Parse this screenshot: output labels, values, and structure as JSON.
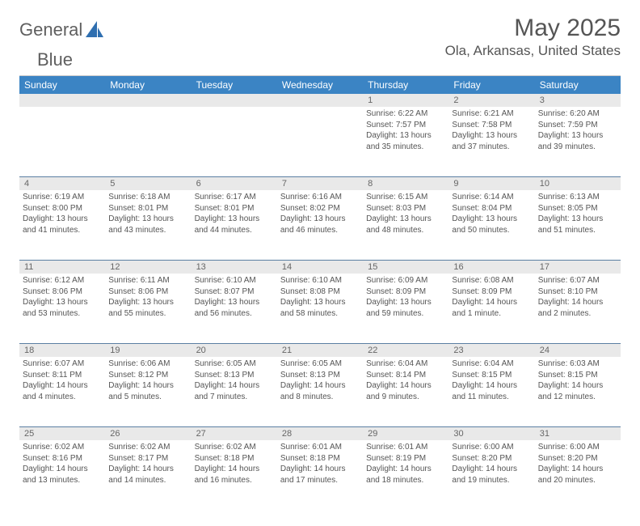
{
  "logo": {
    "text1": "General",
    "text2": "Blue"
  },
  "title": "May 2025",
  "location": "Ola, Arkansas, United States",
  "accent_color": "#3b84c4",
  "band_color": "#e9e9e9",
  "text_color": "#555555",
  "day_names": [
    "Sunday",
    "Monday",
    "Tuesday",
    "Wednesday",
    "Thursday",
    "Friday",
    "Saturday"
  ],
  "weeks": [
    {
      "nums": [
        "",
        "",
        "",
        "",
        "1",
        "2",
        "3"
      ],
      "cells": [
        {},
        {},
        {},
        {},
        {
          "sunrise": "Sunrise: 6:22 AM",
          "sunset": "Sunset: 7:57 PM",
          "day1": "Daylight: 13 hours",
          "day2": "and 35 minutes."
        },
        {
          "sunrise": "Sunrise: 6:21 AM",
          "sunset": "Sunset: 7:58 PM",
          "day1": "Daylight: 13 hours",
          "day2": "and 37 minutes."
        },
        {
          "sunrise": "Sunrise: 6:20 AM",
          "sunset": "Sunset: 7:59 PM",
          "day1": "Daylight: 13 hours",
          "day2": "and 39 minutes."
        }
      ]
    },
    {
      "nums": [
        "4",
        "5",
        "6",
        "7",
        "8",
        "9",
        "10"
      ],
      "cells": [
        {
          "sunrise": "Sunrise: 6:19 AM",
          "sunset": "Sunset: 8:00 PM",
          "day1": "Daylight: 13 hours",
          "day2": "and 41 minutes."
        },
        {
          "sunrise": "Sunrise: 6:18 AM",
          "sunset": "Sunset: 8:01 PM",
          "day1": "Daylight: 13 hours",
          "day2": "and 43 minutes."
        },
        {
          "sunrise": "Sunrise: 6:17 AM",
          "sunset": "Sunset: 8:01 PM",
          "day1": "Daylight: 13 hours",
          "day2": "and 44 minutes."
        },
        {
          "sunrise": "Sunrise: 6:16 AM",
          "sunset": "Sunset: 8:02 PM",
          "day1": "Daylight: 13 hours",
          "day2": "and 46 minutes."
        },
        {
          "sunrise": "Sunrise: 6:15 AM",
          "sunset": "Sunset: 8:03 PM",
          "day1": "Daylight: 13 hours",
          "day2": "and 48 minutes."
        },
        {
          "sunrise": "Sunrise: 6:14 AM",
          "sunset": "Sunset: 8:04 PM",
          "day1": "Daylight: 13 hours",
          "day2": "and 50 minutes."
        },
        {
          "sunrise": "Sunrise: 6:13 AM",
          "sunset": "Sunset: 8:05 PM",
          "day1": "Daylight: 13 hours",
          "day2": "and 51 minutes."
        }
      ]
    },
    {
      "nums": [
        "11",
        "12",
        "13",
        "14",
        "15",
        "16",
        "17"
      ],
      "cells": [
        {
          "sunrise": "Sunrise: 6:12 AM",
          "sunset": "Sunset: 8:06 PM",
          "day1": "Daylight: 13 hours",
          "day2": "and 53 minutes."
        },
        {
          "sunrise": "Sunrise: 6:11 AM",
          "sunset": "Sunset: 8:06 PM",
          "day1": "Daylight: 13 hours",
          "day2": "and 55 minutes."
        },
        {
          "sunrise": "Sunrise: 6:10 AM",
          "sunset": "Sunset: 8:07 PM",
          "day1": "Daylight: 13 hours",
          "day2": "and 56 minutes."
        },
        {
          "sunrise": "Sunrise: 6:10 AM",
          "sunset": "Sunset: 8:08 PM",
          "day1": "Daylight: 13 hours",
          "day2": "and 58 minutes."
        },
        {
          "sunrise": "Sunrise: 6:09 AM",
          "sunset": "Sunset: 8:09 PM",
          "day1": "Daylight: 13 hours",
          "day2": "and 59 minutes."
        },
        {
          "sunrise": "Sunrise: 6:08 AM",
          "sunset": "Sunset: 8:09 PM",
          "day1": "Daylight: 14 hours",
          "day2": "and 1 minute."
        },
        {
          "sunrise": "Sunrise: 6:07 AM",
          "sunset": "Sunset: 8:10 PM",
          "day1": "Daylight: 14 hours",
          "day2": "and 2 minutes."
        }
      ]
    },
    {
      "nums": [
        "18",
        "19",
        "20",
        "21",
        "22",
        "23",
        "24"
      ],
      "cells": [
        {
          "sunrise": "Sunrise: 6:07 AM",
          "sunset": "Sunset: 8:11 PM",
          "day1": "Daylight: 14 hours",
          "day2": "and 4 minutes."
        },
        {
          "sunrise": "Sunrise: 6:06 AM",
          "sunset": "Sunset: 8:12 PM",
          "day1": "Daylight: 14 hours",
          "day2": "and 5 minutes."
        },
        {
          "sunrise": "Sunrise: 6:05 AM",
          "sunset": "Sunset: 8:13 PM",
          "day1": "Daylight: 14 hours",
          "day2": "and 7 minutes."
        },
        {
          "sunrise": "Sunrise: 6:05 AM",
          "sunset": "Sunset: 8:13 PM",
          "day1": "Daylight: 14 hours",
          "day2": "and 8 minutes."
        },
        {
          "sunrise": "Sunrise: 6:04 AM",
          "sunset": "Sunset: 8:14 PM",
          "day1": "Daylight: 14 hours",
          "day2": "and 9 minutes."
        },
        {
          "sunrise": "Sunrise: 6:04 AM",
          "sunset": "Sunset: 8:15 PM",
          "day1": "Daylight: 14 hours",
          "day2": "and 11 minutes."
        },
        {
          "sunrise": "Sunrise: 6:03 AM",
          "sunset": "Sunset: 8:15 PM",
          "day1": "Daylight: 14 hours",
          "day2": "and 12 minutes."
        }
      ]
    },
    {
      "nums": [
        "25",
        "26",
        "27",
        "28",
        "29",
        "30",
        "31"
      ],
      "cells": [
        {
          "sunrise": "Sunrise: 6:02 AM",
          "sunset": "Sunset: 8:16 PM",
          "day1": "Daylight: 14 hours",
          "day2": "and 13 minutes."
        },
        {
          "sunrise": "Sunrise: 6:02 AM",
          "sunset": "Sunset: 8:17 PM",
          "day1": "Daylight: 14 hours",
          "day2": "and 14 minutes."
        },
        {
          "sunrise": "Sunrise: 6:02 AM",
          "sunset": "Sunset: 8:18 PM",
          "day1": "Daylight: 14 hours",
          "day2": "and 16 minutes."
        },
        {
          "sunrise": "Sunrise: 6:01 AM",
          "sunset": "Sunset: 8:18 PM",
          "day1": "Daylight: 14 hours",
          "day2": "and 17 minutes."
        },
        {
          "sunrise": "Sunrise: 6:01 AM",
          "sunset": "Sunset: 8:19 PM",
          "day1": "Daylight: 14 hours",
          "day2": "and 18 minutes."
        },
        {
          "sunrise": "Sunrise: 6:00 AM",
          "sunset": "Sunset: 8:20 PM",
          "day1": "Daylight: 14 hours",
          "day2": "and 19 minutes."
        },
        {
          "sunrise": "Sunrise: 6:00 AM",
          "sunset": "Sunset: 8:20 PM",
          "day1": "Daylight: 14 hours",
          "day2": "and 20 minutes."
        }
      ]
    }
  ]
}
